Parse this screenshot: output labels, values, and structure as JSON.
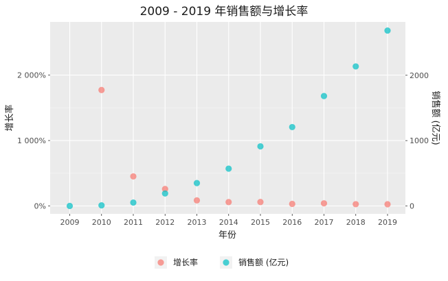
{
  "chart_data": {
    "type": "scatter",
    "title": "2009 - 2019 年销售额与增长率",
    "xlabel": "年份",
    "ylabel_left": "增长率",
    "ylabel_right": "销售额 (亿元)",
    "x": [
      "2009",
      "2010",
      "2011",
      "2012",
      "2013",
      "2014",
      "2015",
      "2016",
      "2017",
      "2018",
      "2019"
    ],
    "y_left": {
      "range": [
        0,
        2200
      ],
      "ticks": [
        0,
        1000,
        2000
      ],
      "tick_labels": [
        "0%",
        "1 000%",
        "2 000%"
      ]
    },
    "y_right": {
      "range": [
        0,
        2800
      ],
      "ticks": [
        0,
        1000,
        2000
      ],
      "tick_labels": [
        "0",
        "1000",
        "2000"
      ]
    },
    "series": [
      {
        "name": "增长率",
        "axis": "left",
        "color": "#F8766D",
        "values": [
          null,
          1772,
          452,
          259,
          85,
          59,
          60,
          32,
          40,
          27,
          26
        ]
      },
      {
        "name": "销售额 (亿元)",
        "axis": "right",
        "color": "#00BFC4",
        "values": [
          0.5,
          9.4,
          52,
          191,
          350,
          571,
          912,
          1207,
          1682,
          2135,
          2684
        ]
      }
    ],
    "grid": true,
    "legend_position": "bottom"
  }
}
